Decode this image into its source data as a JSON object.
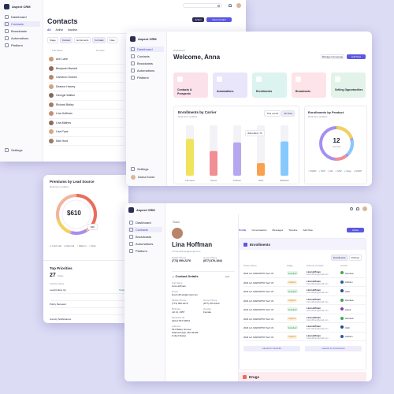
{
  "app": {
    "name": "Aspect CRM"
  },
  "sidebar": {
    "items": [
      {
        "label": "Dashboard"
      },
      {
        "label": "Contacts"
      },
      {
        "label": "Broadcasts"
      },
      {
        "label": "Automations"
      },
      {
        "label": "Platform"
      }
    ],
    "settings_label": "Settings",
    "user_name": "Dasha Kortan"
  },
  "contacts_page": {
    "title": "Contacts",
    "tabs": [
      {
        "label": "All"
      },
      {
        "label": "Active"
      },
      {
        "label": "Inactive"
      }
    ],
    "filters": [
      "Stage",
      "Contact",
      "Enrolments",
      "Formats",
      "Date"
    ],
    "columns": [
      "Full Name",
      "Number"
    ],
    "rows": [
      {
        "name": "Ann Lane"
      },
      {
        "name": "Benjamin Barnett"
      },
      {
        "name": "Cameron Graves"
      },
      {
        "name": "Deanne Harvey"
      },
      {
        "name": "Georgie Walton"
      },
      {
        "name": "Richard Bailey"
      },
      {
        "name": "Lina Hoffman"
      },
      {
        "name": "Lina Mathes"
      },
      {
        "name": "Lisa Pope"
      },
      {
        "name": "Max Hurd"
      }
    ],
    "action_label": "Action",
    "new_contact_label": "New Contact"
  },
  "premiums_card": {
    "title": "Premiums by Lead Source",
    "subtitle": "Real-time updates",
    "center_value": "$610",
    "tooltip_value": "$30",
    "legend": [
      "Cold Call",
      "Referral",
      "Walk-in",
      "Web"
    ]
  },
  "top_priorities": {
    "title": "Top Priorities",
    "count": "27",
    "count_suffix": "Tasks",
    "column": "Activity Name",
    "tag": "Today",
    "items": [
      "Lead Follow Up",
      "",
      "Policy Renewal",
      "",
      "Annuity Notifications"
    ]
  },
  "dashboard": {
    "breadcrumb": "Dashboard",
    "welcome": "Welcome, Anna",
    "manage_widgets": "Manage Homepage",
    "add_new": "Add New",
    "tiles": [
      {
        "label": "Contacts & Prospects",
        "color": "#fbe1ea",
        "icon": "users-icon"
      },
      {
        "label": "Automations",
        "color": "#e9e5fb",
        "icon": "bolt-icon"
      },
      {
        "label": "Enrollments",
        "color": "#ddf3f0",
        "icon": "clipboard-icon"
      },
      {
        "label": "Broadcasts",
        "color": "#fde4e8",
        "icon": "megaphone-icon"
      },
      {
        "label": "Selling Opportunities",
        "color": "#e3f3ea",
        "icon": "target-icon"
      }
    ],
    "carrier_chart": {
      "title": "Enrollments by Carrier",
      "subtitle": "Real-time updates",
      "period_options": [
        "This month",
        "All Time"
      ],
      "tooltip": "Enrolled: 73",
      "tooltip_count": "4"
    },
    "product_chart": {
      "title": "Enrollments by Product",
      "subtitle": "Real-time updates",
      "center_value": "12",
      "center_label": "records",
      "legend": [
        "MAPD",
        "PDP",
        "MA",
        "SNP",
        "Supp",
        "DSNP"
      ]
    },
    "settings_label": "Settings",
    "user_name": "Dasha Kortan"
  },
  "chart_data": {
    "type": "bar",
    "title": "Enrollments by Carrier",
    "categories": [
      "Humana",
      "Aetna",
      "Anthem",
      "UHC",
      "Wellcare"
    ],
    "values": [
      73,
      49,
      66,
      25,
      68
    ],
    "ylim": [
      0,
      100
    ],
    "colors": [
      "#f1e35c",
      "#f08f94",
      "#b7a7ef",
      "#f8a24e",
      "#86c9ff"
    ]
  },
  "profile": {
    "back_label": "Back",
    "name": "Lina Hoffman",
    "email": "lina.hoffman@email.com",
    "mobile_label": "Mobile Phone",
    "mobile": "(773) 999-2276",
    "home_label": "Home Phone",
    "home": "(877) 876-1644",
    "contact_details_title": "Contact Details",
    "edit_label": "Edit",
    "fields": [
      {
        "label": "Full Name",
        "value": "Lina Hoffman"
      },
      {
        "label": "Email",
        "value": "lina.hoffman@email.com"
      },
      {
        "label": "Mobile Phone",
        "value": "(773) 999-2276"
      },
      {
        "label": "Birthday",
        "value": "Jul 21, 1957"
      },
      {
        "label": "Medicare ID",
        "value": "1EG4-TE7-MK54"
      },
      {
        "label": "Address",
        "value": "521 Bailey Groove"
      },
      {
        "label": "City",
        "value": "Stantonburgh, MA 02128"
      },
      {
        "label": "Country",
        "value": "United States"
      }
    ],
    "side_fields": [
      {
        "label": "Home Phone",
        "value": "(877) 876-1644"
      },
      {
        "label": "Gender",
        "value": "Female"
      }
    ],
    "tabs": [
      "Profile",
      "Conversations",
      "Messages",
      "Timeline",
      "Add Note"
    ],
    "enrollments_title": "Enrollments",
    "segment": [
      "Enrollments",
      "Policies"
    ],
    "table_columns": [
      "Policy Name",
      "Stage",
      "Primary Contact",
      "Carrier"
    ],
    "enrollments": [
      {
        "policy": "2023 H-1 MAPD/PPO Tier2 V2",
        "stage": "Enrolled",
        "contact": "Lina Hoffman",
        "carrier": "Humana"
      },
      {
        "policy": "2023 H-1 MAPD/PPO Tier2 V2",
        "stage": "Applied",
        "contact": "Lina Hoffman",
        "carrier": "Anthem"
      },
      {
        "policy": "2023 H-1 MAPD/PPO Tier2 V2",
        "stage": "Enrolled",
        "contact": "Lina Hoffman",
        "carrier": "UHC"
      },
      {
        "policy": "2023 H-1 MAPD/PPO Tier2 V2",
        "stage": "Applied",
        "contact": "Lina Hoffman",
        "carrier": "Humana"
      },
      {
        "policy": "2023 H-1 MAPD/PPO Tier2 V2",
        "stage": "Enrolled",
        "contact": "Lina Hoffman",
        "carrier": "Aetna"
      },
      {
        "policy": "2023 H-1 MAPD/PPO Tier2 V2",
        "stage": "Applied",
        "contact": "Lina Hoffman",
        "carrier": "Humana"
      },
      {
        "policy": "2023 H-1 MAPD/PPO Tier2 V2",
        "stage": "Enrolled",
        "contact": "Lina Hoffman",
        "carrier": "UHC"
      },
      {
        "policy": "2023 H-1 MAPD/PPO Tier2 V2",
        "stage": "Applied",
        "contact": "Lina Hoffman",
        "carrier": "Anthem"
      }
    ],
    "launch_buttons": [
      "Launch in SunFire",
      "Launch in Connecture"
    ],
    "drugs_title": "Drugs",
    "action_label": "Action"
  }
}
